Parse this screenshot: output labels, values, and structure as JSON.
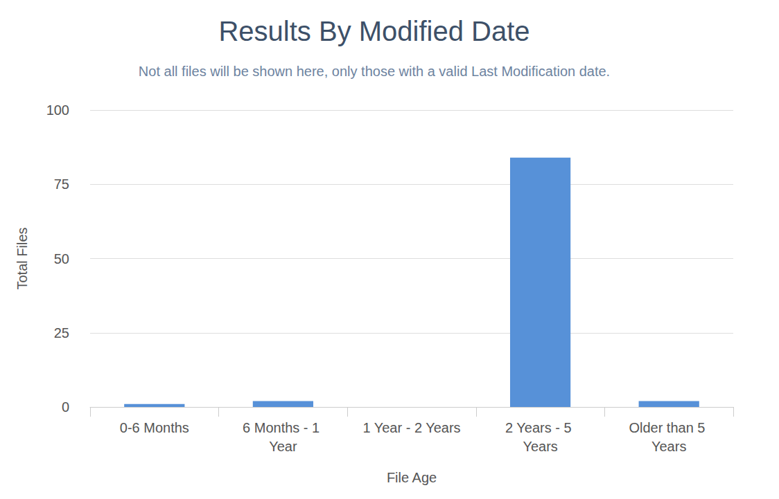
{
  "chart_data": {
    "type": "bar",
    "title": "Results By Modified Date",
    "subtitle": "Not all files will be shown here, only those with a valid Last Modification date.",
    "xlabel": "File Age",
    "ylabel": "Total Files",
    "categories": [
      "0-6 Months",
      "6 Months - 1 Year",
      "1 Year - 2 Years",
      "2 Years - 5 Years",
      "Older than 5 Years"
    ],
    "values": [
      1,
      2,
      0,
      84,
      2
    ],
    "color": "#5791d8",
    "ylim": [
      0,
      100
    ],
    "yticks": [
      0,
      25,
      50,
      75,
      100
    ],
    "grid": true
  }
}
